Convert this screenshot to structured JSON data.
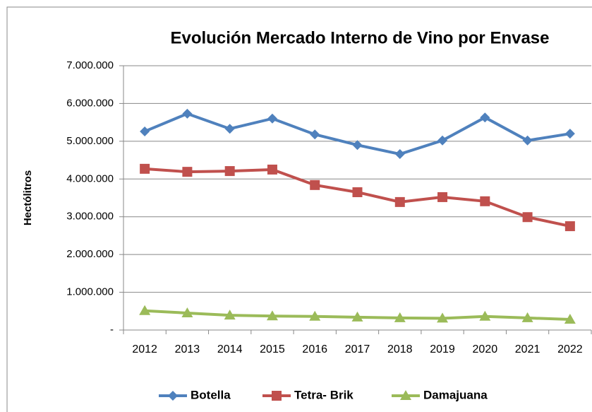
{
  "chart_data": {
    "type": "line",
    "title": "Evolución Mercado Interno de Vino por Envase",
    "y_label": "Hectólitros",
    "categories": [
      "2012",
      "2013",
      "2014",
      "2015",
      "2016",
      "2017",
      "2018",
      "2019",
      "2020",
      "2021",
      "2022"
    ],
    "series": [
      {
        "name": "Botella",
        "color": "#4f81bd",
        "marker": "diamond",
        "values": [
          5260000,
          5730000,
          5330000,
          5600000,
          5180000,
          4900000,
          4660000,
          5020000,
          5630000,
          5020000,
          5200000
        ]
      },
      {
        "name": "Tetra- Brik",
        "color": "#c0504d",
        "marker": "square",
        "values": [
          4270000,
          4190000,
          4210000,
          4250000,
          3840000,
          3650000,
          3390000,
          3520000,
          3410000,
          2990000,
          2750000
        ]
      },
      {
        "name": "Damajuana",
        "color": "#9bbb59",
        "marker": "triangle",
        "values": [
          510000,
          450000,
          390000,
          370000,
          360000,
          340000,
          320000,
          310000,
          360000,
          320000,
          280000
        ]
      }
    ],
    "ylim": [
      0,
      7000000
    ],
    "yticks": [
      {
        "value": 0,
        "label": "-"
      },
      {
        "value": 1000000,
        "label": "1.000.000"
      },
      {
        "value": 2000000,
        "label": "2.000.000"
      },
      {
        "value": 3000000,
        "label": "3.000.000"
      },
      {
        "value": 4000000,
        "label": "4.000.000"
      },
      {
        "value": 5000000,
        "label": "5.000.000"
      },
      {
        "value": 6000000,
        "label": "6.000.000"
      },
      {
        "value": 7000000,
        "label": "7.000.000"
      }
    ],
    "grid": true,
    "legend": "bottom"
  }
}
